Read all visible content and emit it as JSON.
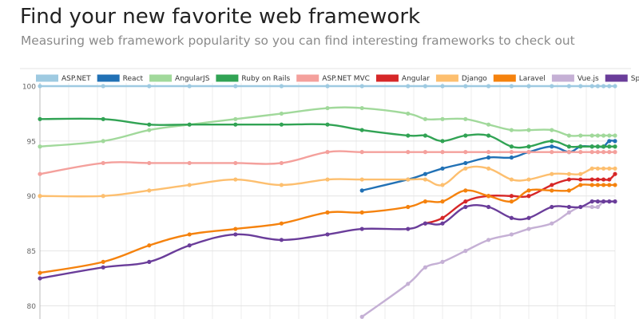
{
  "page": {
    "title": "Find your new favorite web framework",
    "subtitle": "Measuring web framework popularity so you can find interesting frameworks to check out"
  },
  "chart_data": {
    "type": "line",
    "title": "",
    "xlabel": "",
    "ylabel": "",
    "ylim": [
      78.8,
      100
    ],
    "y_ticks": [
      80,
      85,
      90,
      95,
      100
    ],
    "x_range": [
      0,
      100
    ],
    "grid": "on",
    "legend_position": "top",
    "series": [
      {
        "name": "ASP.NET",
        "color": "#9ecae1",
        "points": [
          [
            0,
            100
          ],
          [
            11,
            100
          ],
          [
            19,
            100
          ],
          [
            26,
            100
          ],
          [
            34,
            100
          ],
          [
            42,
            100
          ],
          [
            50,
            100
          ],
          [
            56,
            100
          ],
          [
            64,
            100
          ],
          [
            67,
            100
          ],
          [
            70,
            100
          ],
          [
            74,
            100
          ],
          [
            78,
            100
          ],
          [
            82,
            100
          ],
          [
            85,
            100
          ],
          [
            89,
            100
          ],
          [
            92,
            100
          ],
          [
            94,
            100
          ],
          [
            96,
            100
          ],
          [
            97,
            100
          ],
          [
            98,
            100
          ],
          [
            99,
            100
          ],
          [
            100,
            100
          ]
        ]
      },
      {
        "name": "React",
        "color": "#2171b5",
        "points": [
          [
            56,
            90.5
          ],
          [
            64,
            91.5
          ],
          [
            67,
            92
          ],
          [
            70,
            92.5
          ],
          [
            74,
            93
          ],
          [
            78,
            93.5
          ],
          [
            82,
            93.5
          ],
          [
            85,
            94
          ],
          [
            89,
            94.5
          ],
          [
            92,
            94
          ],
          [
            94,
            94.5
          ],
          [
            96,
            94.5
          ],
          [
            97,
            94.5
          ],
          [
            98,
            94.5
          ],
          [
            99,
            95
          ],
          [
            100,
            95
          ]
        ]
      },
      {
        "name": "AngularJS",
        "color": "#a1d99b",
        "points": [
          [
            0,
            94.5
          ],
          [
            11,
            95
          ],
          [
            19,
            96
          ],
          [
            26,
            96.5
          ],
          [
            34,
            97
          ],
          [
            42,
            97.5
          ],
          [
            50,
            98
          ],
          [
            56,
            98
          ],
          [
            64,
            97.5
          ],
          [
            67,
            97
          ],
          [
            70,
            97
          ],
          [
            74,
            97
          ],
          [
            78,
            96.5
          ],
          [
            82,
            96
          ],
          [
            85,
            96
          ],
          [
            89,
            96
          ],
          [
            92,
            95.5
          ],
          [
            94,
            95.5
          ],
          [
            96,
            95.5
          ],
          [
            97,
            95.5
          ],
          [
            98,
            95.5
          ],
          [
            99,
            95.5
          ],
          [
            100,
            95.5
          ]
        ]
      },
      {
        "name": "Ruby on Rails",
        "color": "#31a354",
        "points": [
          [
            0,
            97
          ],
          [
            11,
            97
          ],
          [
            19,
            96.5
          ],
          [
            26,
            96.5
          ],
          [
            34,
            96.5
          ],
          [
            42,
            96.5
          ],
          [
            50,
            96.5
          ],
          [
            56,
            96
          ],
          [
            64,
            95.5
          ],
          [
            67,
            95.5
          ],
          [
            70,
            95
          ],
          [
            74,
            95.5
          ],
          [
            78,
            95.5
          ],
          [
            82,
            94.5
          ],
          [
            85,
            94.5
          ],
          [
            89,
            95
          ],
          [
            92,
            94.5
          ],
          [
            94,
            94.5
          ],
          [
            96,
            94.5
          ],
          [
            97,
            94.5
          ],
          [
            98,
            94.5
          ],
          [
            99,
            94.5
          ],
          [
            100,
            94.5
          ]
        ]
      },
      {
        "name": "ASP.NET MVC",
        "color": "#f4a09c",
        "points": [
          [
            0,
            92
          ],
          [
            11,
            93
          ],
          [
            19,
            93
          ],
          [
            26,
            93
          ],
          [
            34,
            93
          ],
          [
            42,
            93
          ],
          [
            50,
            94
          ],
          [
            56,
            94
          ],
          [
            64,
            94
          ],
          [
            67,
            94
          ],
          [
            70,
            94
          ],
          [
            74,
            94
          ],
          [
            78,
            94
          ],
          [
            82,
            94
          ],
          [
            85,
            94
          ],
          [
            89,
            94
          ],
          [
            92,
            94
          ],
          [
            94,
            94
          ],
          [
            96,
            94
          ],
          [
            97,
            94
          ],
          [
            98,
            94
          ],
          [
            99,
            94
          ],
          [
            100,
            94
          ]
        ]
      },
      {
        "name": "Angular",
        "color": "#d62728",
        "points": [
          [
            67,
            87.5
          ],
          [
            70,
            88
          ],
          [
            74,
            89.5
          ],
          [
            78,
            90
          ],
          [
            82,
            90
          ],
          [
            85,
            90
          ],
          [
            89,
            91
          ],
          [
            92,
            91.5
          ],
          [
            94,
            91.5
          ],
          [
            96,
            91.5
          ],
          [
            97,
            91.5
          ],
          [
            98,
            91.5
          ],
          [
            99,
            91.5
          ],
          [
            100,
            92
          ]
        ]
      },
      {
        "name": "Django",
        "color": "#fdbf6f",
        "points": [
          [
            0,
            90
          ],
          [
            11,
            90
          ],
          [
            19,
            90.5
          ],
          [
            26,
            91
          ],
          [
            34,
            91.5
          ],
          [
            42,
            91
          ],
          [
            50,
            91.5
          ],
          [
            56,
            91.5
          ],
          [
            64,
            91.5
          ],
          [
            67,
            91.5
          ],
          [
            70,
            91
          ],
          [
            74,
            92.5
          ],
          [
            78,
            92.5
          ],
          [
            82,
            91.5
          ],
          [
            85,
            91.5
          ],
          [
            89,
            92
          ],
          [
            92,
            92
          ],
          [
            94,
            92
          ],
          [
            96,
            92.5
          ],
          [
            97,
            92.5
          ],
          [
            98,
            92.5
          ],
          [
            99,
            92.5
          ],
          [
            100,
            92.5
          ]
        ]
      },
      {
        "name": "Laravel",
        "color": "#f5820d",
        "points": [
          [
            0,
            83
          ],
          [
            11,
            84
          ],
          [
            19,
            85.5
          ],
          [
            26,
            86.5
          ],
          [
            34,
            87
          ],
          [
            42,
            87.5
          ],
          [
            50,
            88.5
          ],
          [
            56,
            88.5
          ],
          [
            64,
            89
          ],
          [
            67,
            89.5
          ],
          [
            70,
            89.5
          ],
          [
            74,
            90.5
          ],
          [
            78,
            90
          ],
          [
            82,
            89.5
          ],
          [
            85,
            90.5
          ],
          [
            89,
            90.5
          ],
          [
            92,
            90.5
          ],
          [
            94,
            91
          ],
          [
            96,
            91
          ],
          [
            97,
            91
          ],
          [
            98,
            91
          ],
          [
            99,
            91
          ],
          [
            100,
            91
          ]
        ]
      },
      {
        "name": "Vue.js",
        "color": "#c5b0d5",
        "points": [
          [
            56,
            79
          ],
          [
            64,
            82
          ],
          [
            67,
            83.5
          ],
          [
            70,
            84
          ],
          [
            74,
            85
          ],
          [
            78,
            86
          ],
          [
            82,
            86.5
          ],
          [
            85,
            87
          ],
          [
            89,
            87.5
          ],
          [
            92,
            88.5
          ],
          [
            94,
            89
          ],
          [
            96,
            89
          ],
          [
            97,
            89
          ],
          [
            98,
            89.5
          ],
          [
            99,
            89.5
          ],
          [
            100,
            89.5
          ]
        ]
      },
      {
        "name": "Spring",
        "color": "#6a3d9a",
        "points": [
          [
            0,
            82.5
          ],
          [
            11,
            83.5
          ],
          [
            19,
            84
          ],
          [
            26,
            85.5
          ],
          [
            34,
            86.5
          ],
          [
            42,
            86
          ],
          [
            50,
            86.5
          ],
          [
            56,
            87
          ],
          [
            64,
            87
          ],
          [
            67,
            87.5
          ],
          [
            70,
            87.5
          ],
          [
            74,
            89
          ],
          [
            78,
            89
          ],
          [
            82,
            88
          ],
          [
            85,
            88
          ],
          [
            89,
            89
          ],
          [
            92,
            89
          ],
          [
            94,
            89
          ],
          [
            96,
            89.5
          ],
          [
            97,
            89.5
          ],
          [
            98,
            89.5
          ],
          [
            99,
            89.5
          ],
          [
            100,
            89.5
          ]
        ]
      }
    ]
  }
}
